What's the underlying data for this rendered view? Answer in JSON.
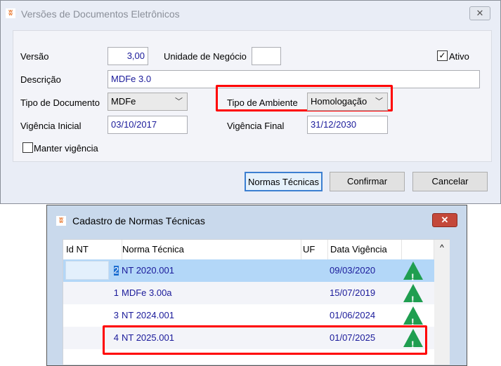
{
  "main_window": {
    "title": "Versões de Documentos Eletrônicos",
    "close": "✕",
    "versao_label": "Versão",
    "versao_value": "3,00",
    "unidade_label": "Unidade de Negócio",
    "unidade_value": "",
    "ativo_label": "Ativo",
    "ativo_checked": true,
    "descricao_label": "Descrição",
    "descricao_value": "MDFe 3.0",
    "tipo_doc_label": "Tipo de Documento",
    "tipo_doc_value": "MDFe",
    "tipo_amb_label": "Tipo de Ambiente",
    "tipo_amb_value": "Homologação",
    "vig_ini_label": "Vigência Inicial",
    "vig_ini_value": "03/10/2017",
    "vig_fim_label": "Vigência Final",
    "vig_fim_value": "31/12/2030",
    "manter_label": "Manter vigência",
    "manter_checked": false,
    "buttons": {
      "normas": "Normas Técnicas",
      "confirmar": "Confirmar",
      "cancelar": "Cancelar"
    }
  },
  "normas_window": {
    "title": "Cadastro de Normas Técnicas",
    "close": "✕",
    "columns": [
      "Id NT",
      "Norma Técnica",
      "UF",
      "Data Vigência",
      ""
    ],
    "rows": [
      {
        "id": "2",
        "norma": "NT 2020.001",
        "uf": "",
        "data": "09/03/2020",
        "icon": "warning-icon",
        "selected": true
      },
      {
        "id": "1",
        "norma": "MDFe 3.00a",
        "uf": "",
        "data": "15/07/2019",
        "icon": "warning-icon"
      },
      {
        "id": "3",
        "norma": "NT 2024.001",
        "uf": "",
        "data": "01/06/2024",
        "icon": "warning-icon"
      },
      {
        "id": "4",
        "norma": "NT 2025.001",
        "uf": "",
        "data": "01/07/2025",
        "icon": "warning-icon"
      }
    ],
    "scroll_up": "^"
  },
  "colors": {
    "highlight": "#ff0000",
    "selected_row": "#b3d7f8",
    "warning": "#1f9e50"
  }
}
